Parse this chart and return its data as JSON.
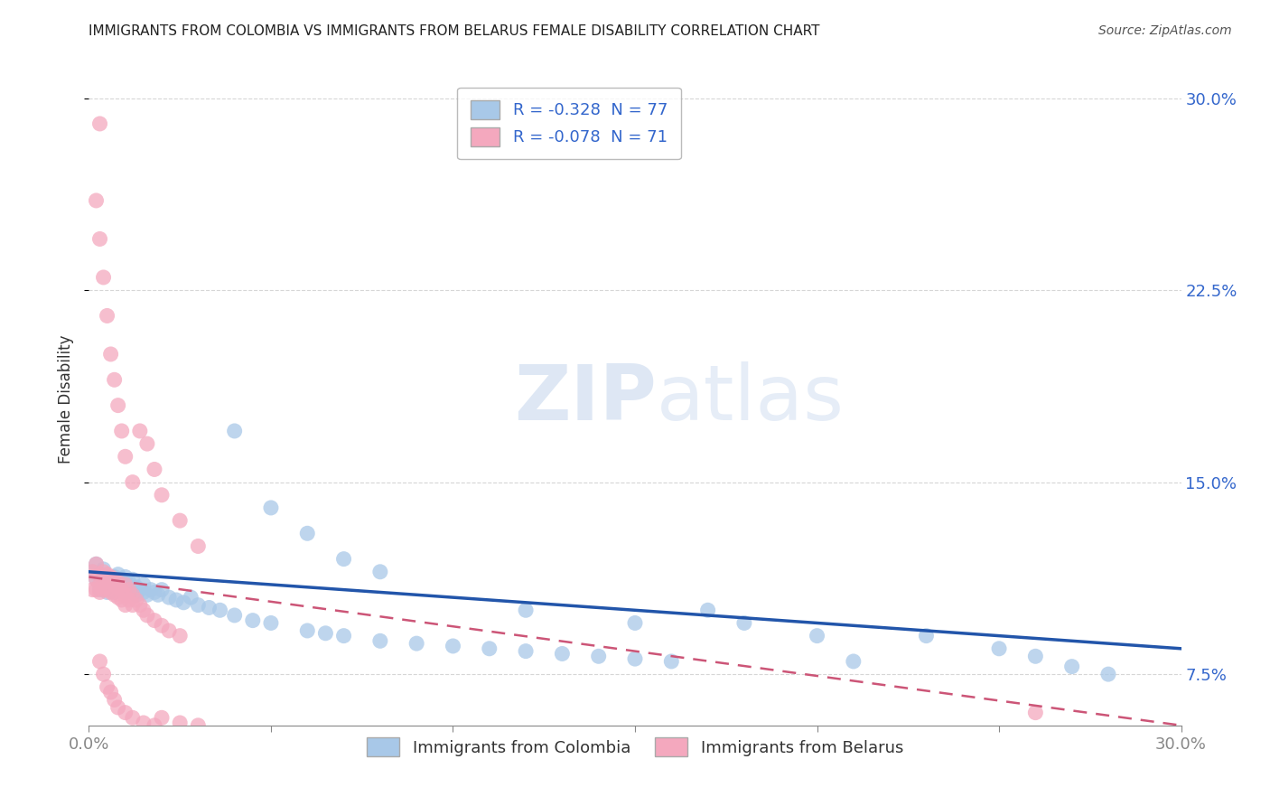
{
  "title": "IMMIGRANTS FROM COLOMBIA VS IMMIGRANTS FROM BELARUS FEMALE DISABILITY CORRELATION CHART",
  "source": "Source: ZipAtlas.com",
  "ylabel": "Female Disability",
  "xlim": [
    0.0,
    0.3
  ],
  "ylim": [
    0.055,
    0.31
  ],
  "xtick_positions": [
    0.0,
    0.05,
    0.1,
    0.15,
    0.2,
    0.25,
    0.3
  ],
  "xtick_labels": [
    "0.0%",
    "",
    "",
    "",
    "",
    "",
    "30.0%"
  ],
  "yticks_right": [
    0.075,
    0.15,
    0.225,
    0.3
  ],
  "ytick_labels_right": [
    "7.5%",
    "15.0%",
    "22.5%",
    "30.0%"
  ],
  "colombia_R": -0.328,
  "colombia_N": 77,
  "belarus_R": -0.078,
  "belarus_N": 71,
  "colombia_color": "#a8c8e8",
  "belarus_color": "#f4a8be",
  "colombia_line_color": "#2255aa",
  "belarus_line_color": "#cc5577",
  "background_color": "#ffffff",
  "grid_color": "#cccccc",
  "watermark": "ZIPatlas",
  "watermark_color": "#d0dff0",
  "legend_edge_color": "#aaaaaa",
  "axis_color": "#888888",
  "label_color": "#3366cc",
  "colombia_x": [
    0.001,
    0.002,
    0.002,
    0.003,
    0.003,
    0.003,
    0.004,
    0.004,
    0.004,
    0.005,
    0.005,
    0.005,
    0.006,
    0.006,
    0.007,
    0.007,
    0.007,
    0.008,
    0.008,
    0.008,
    0.009,
    0.009,
    0.01,
    0.01,
    0.01,
    0.011,
    0.011,
    0.012,
    0.012,
    0.013,
    0.013,
    0.014,
    0.015,
    0.015,
    0.016,
    0.017,
    0.018,
    0.019,
    0.02,
    0.022,
    0.024,
    0.026,
    0.028,
    0.03,
    0.033,
    0.036,
    0.04,
    0.045,
    0.05,
    0.06,
    0.065,
    0.07,
    0.08,
    0.09,
    0.1,
    0.11,
    0.12,
    0.13,
    0.14,
    0.15,
    0.16,
    0.17,
    0.18,
    0.2,
    0.21,
    0.23,
    0.25,
    0.26,
    0.27,
    0.28,
    0.04,
    0.05,
    0.06,
    0.07,
    0.08,
    0.12,
    0.15
  ],
  "colombia_y": [
    0.115,
    0.112,
    0.118,
    0.11,
    0.114,
    0.108,
    0.112,
    0.116,
    0.109,
    0.113,
    0.11,
    0.107,
    0.112,
    0.108,
    0.113,
    0.11,
    0.107,
    0.114,
    0.111,
    0.108,
    0.112,
    0.109,
    0.113,
    0.11,
    0.107,
    0.111,
    0.108,
    0.112,
    0.108,
    0.109,
    0.106,
    0.108,
    0.107,
    0.11,
    0.106,
    0.108,
    0.107,
    0.106,
    0.108,
    0.105,
    0.104,
    0.103,
    0.105,
    0.102,
    0.101,
    0.1,
    0.098,
    0.096,
    0.095,
    0.092,
    0.091,
    0.09,
    0.088,
    0.087,
    0.086,
    0.085,
    0.084,
    0.083,
    0.082,
    0.081,
    0.08,
    0.1,
    0.095,
    0.09,
    0.08,
    0.09,
    0.085,
    0.082,
    0.078,
    0.075,
    0.17,
    0.14,
    0.13,
    0.12,
    0.115,
    0.1,
    0.095
  ],
  "belarus_x": [
    0.001,
    0.001,
    0.002,
    0.002,
    0.002,
    0.003,
    0.003,
    0.003,
    0.004,
    0.004,
    0.004,
    0.005,
    0.005,
    0.005,
    0.006,
    0.006,
    0.006,
    0.007,
    0.007,
    0.007,
    0.008,
    0.008,
    0.008,
    0.009,
    0.009,
    0.01,
    0.01,
    0.01,
    0.011,
    0.011,
    0.012,
    0.012,
    0.013,
    0.014,
    0.015,
    0.016,
    0.018,
    0.02,
    0.022,
    0.025,
    0.002,
    0.003,
    0.004,
    0.005,
    0.006,
    0.007,
    0.008,
    0.009,
    0.01,
    0.012,
    0.014,
    0.016,
    0.018,
    0.02,
    0.025,
    0.03,
    0.003,
    0.004,
    0.005,
    0.006,
    0.007,
    0.008,
    0.01,
    0.012,
    0.015,
    0.018,
    0.02,
    0.025,
    0.03,
    0.26,
    0.003
  ],
  "belarus_y": [
    0.108,
    0.115,
    0.112,
    0.108,
    0.118,
    0.11,
    0.107,
    0.114,
    0.111,
    0.108,
    0.115,
    0.112,
    0.108,
    0.114,
    0.111,
    0.107,
    0.113,
    0.11,
    0.106,
    0.112,
    0.109,
    0.105,
    0.111,
    0.108,
    0.104,
    0.11,
    0.106,
    0.102,
    0.108,
    0.104,
    0.106,
    0.102,
    0.104,
    0.102,
    0.1,
    0.098,
    0.096,
    0.094,
    0.092,
    0.09,
    0.26,
    0.245,
    0.23,
    0.215,
    0.2,
    0.19,
    0.18,
    0.17,
    0.16,
    0.15,
    0.17,
    0.165,
    0.155,
    0.145,
    0.135,
    0.125,
    0.08,
    0.075,
    0.07,
    0.068,
    0.065,
    0.062,
    0.06,
    0.058,
    0.056,
    0.055,
    0.058,
    0.056,
    0.055,
    0.06,
    0.29
  ]
}
